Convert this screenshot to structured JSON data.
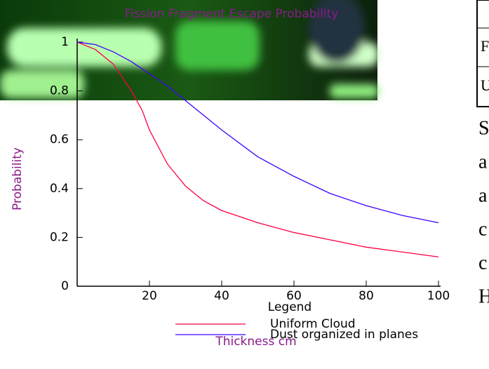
{
  "chart_data": {
    "type": "line",
    "title": "Fission Fragment Escape Probability",
    "xlabel": "Thickness cm",
    "ylabel": "Probability",
    "legend_title": "Legend",
    "x": [
      0,
      5,
      10,
      15,
      18,
      20,
      25,
      30,
      35,
      40,
      50,
      60,
      70,
      80,
      90,
      100
    ],
    "series": [
      {
        "name": "Uniform Cloud",
        "color": "#ff0040",
        "values": [
          1,
          0.97,
          0.91,
          0.8,
          0.72,
          0.64,
          0.5,
          0.41,
          0.35,
          0.31,
          0.26,
          0.22,
          0.19,
          0.16,
          0.14,
          0.12
        ]
      },
      {
        "name": "Dust organized in planes",
        "color": "#4000ff",
        "values": [
          1,
          0.99,
          0.96,
          0.92,
          0.89,
          0.87,
          0.82,
          0.76,
          0.7,
          0.64,
          0.53,
          0.45,
          0.38,
          0.33,
          0.29,
          0.26
        ]
      }
    ],
    "xlim": [
      0,
      100
    ],
    "xticks": [
      20,
      40,
      60,
      80,
      100
    ],
    "ylim": [
      0,
      1
    ],
    "yticks": [
      0,
      0.2,
      0.4,
      0.6,
      0.8,
      1
    ]
  },
  "side_table": [
    "F",
    "U"
  ],
  "side_text": [
    "S",
    "a",
    "a",
    "c",
    "c",
    "H"
  ]
}
